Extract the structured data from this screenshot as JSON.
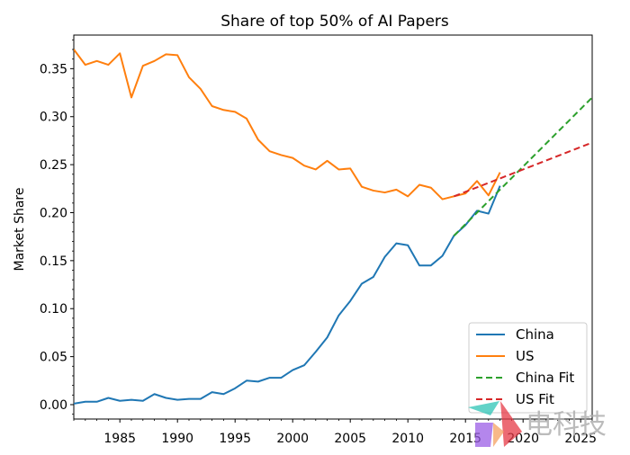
{
  "chart_data": {
    "type": "line",
    "title": "Share of top 50% of AI Papers",
    "xlabel": "",
    "ylabel": "Market Share",
    "xlim": [
      1981,
      2026
    ],
    "ylim": [
      -0.015,
      0.385
    ],
    "x_ticks": [
      1985,
      1990,
      1995,
      2000,
      2005,
      2010,
      2015,
      2020,
      2025
    ],
    "y_ticks": [
      0.0,
      0.05,
      0.1,
      0.15,
      0.2,
      0.25,
      0.3,
      0.35
    ],
    "y_tick_labels": [
      "0.00",
      "0.05",
      "0.10",
      "0.15",
      "0.20",
      "0.25",
      "0.30",
      "0.35"
    ],
    "grid": false,
    "legend_position": "lower-right",
    "series": [
      {
        "name": "China",
        "color": "#1f77b4",
        "style": "solid",
        "x": [
          1981,
          1982,
          1983,
          1984,
          1985,
          1986,
          1987,
          1988,
          1989,
          1990,
          1991,
          1992,
          1993,
          1994,
          1995,
          1996,
          1997,
          1998,
          1999,
          2000,
          2001,
          2002,
          2003,
          2004,
          2005,
          2006,
          2007,
          2008,
          2009,
          2010,
          2011,
          2012,
          2013,
          2014,
          2015,
          2016,
          2017,
          2018
        ],
        "y": [
          0.001,
          0.003,
          0.003,
          0.007,
          0.004,
          0.005,
          0.004,
          0.011,
          0.007,
          0.005,
          0.006,
          0.006,
          0.013,
          0.011,
          0.017,
          0.025,
          0.024,
          0.028,
          0.028,
          0.036,
          0.041,
          0.055,
          0.07,
          0.093,
          0.108,
          0.126,
          0.133,
          0.154,
          0.168,
          0.166,
          0.145,
          0.145,
          0.155,
          0.176,
          0.187,
          0.202,
          0.199,
          0.228
        ]
      },
      {
        "name": "US",
        "color": "#ff7f0e",
        "style": "solid",
        "x": [
          1981,
          1982,
          1983,
          1984,
          1985,
          1986,
          1987,
          1988,
          1989,
          1990,
          1991,
          1992,
          1993,
          1994,
          1995,
          1996,
          1997,
          1998,
          1999,
          2000,
          2001,
          2002,
          2003,
          2004,
          2005,
          2006,
          2007,
          2008,
          2009,
          2010,
          2011,
          2012,
          2013,
          2014,
          2015,
          2016,
          2017,
          2018
        ],
        "y": [
          0.37,
          0.354,
          0.358,
          0.354,
          0.366,
          0.32,
          0.353,
          0.358,
          0.365,
          0.364,
          0.341,
          0.329,
          0.311,
          0.307,
          0.305,
          0.298,
          0.276,
          0.264,
          0.26,
          0.257,
          0.249,
          0.245,
          0.254,
          0.245,
          0.246,
          0.227,
          0.223,
          0.221,
          0.224,
          0.217,
          0.229,
          0.226,
          0.214,
          0.217,
          0.22,
          0.233,
          0.218,
          0.242
        ]
      },
      {
        "name": "China Fit",
        "color": "#2ca02c",
        "style": "dashed",
        "x": [
          2014,
          2026
        ],
        "y": [
          0.176,
          0.32
        ]
      },
      {
        "name": "US Fit",
        "color": "#d62728",
        "style": "dashed",
        "x": [
          2014,
          2026
        ],
        "y": [
          0.217,
          0.273
        ]
      }
    ]
  },
  "watermark": {
    "text": "电科技",
    "colors": [
      "#2ec4b6",
      "#e63946",
      "#9b5de5",
      "#f4a261"
    ]
  }
}
